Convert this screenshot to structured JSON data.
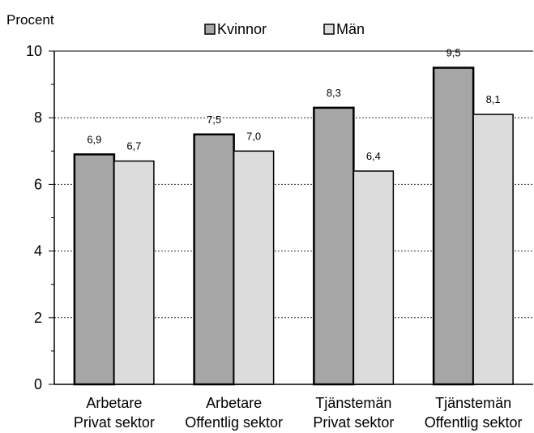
{
  "chart_data": {
    "type": "bar",
    "ylabel": "Procent",
    "xlabel": "",
    "ylim": [
      0,
      10
    ],
    "yticks": [
      "0",
      "2",
      "4",
      "6",
      "8",
      "10"
    ],
    "grid": true,
    "legend_position": "top",
    "categories": [
      [
        "Arbetare",
        "Privat sektor"
      ],
      [
        "Arbetare",
        "Offentlig sektor"
      ],
      [
        "Tjänstemän",
        "Privat sektor"
      ],
      [
        "Tjänstemän",
        "Offentlig sektor"
      ]
    ],
    "series": [
      {
        "name": "Kvinnor",
        "color": "#a6a6a6",
        "values": [
          6.9,
          7.5,
          8.3,
          9.5
        ],
        "labels": [
          "6,9",
          "7,5",
          "8,3",
          "9,5"
        ]
      },
      {
        "name": "Män",
        "color": "#dcdcdc",
        "values": [
          6.7,
          7.0,
          6.4,
          8.1
        ],
        "labels": [
          "6,7",
          "7,0",
          "6,4",
          "8,1"
        ]
      }
    ]
  }
}
